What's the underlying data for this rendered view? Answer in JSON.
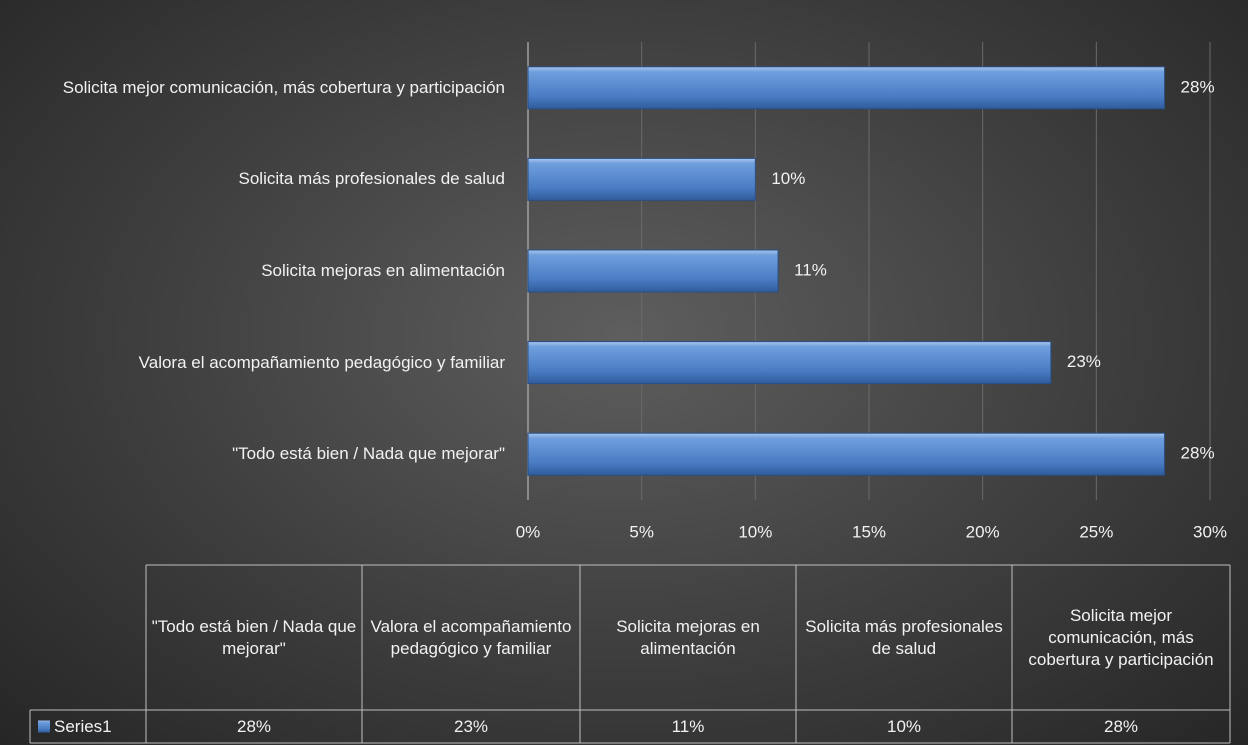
{
  "chart_data": {
    "type": "bar",
    "orientation": "horizontal",
    "categories": [
      "\"Todo está bien / Nada que mejorar\"",
      "Valora el acompañamiento pedagógico y familiar",
      "Solicita mejoras en alimentación",
      "Solicita más profesionales de salud",
      "Solicita mejor comunicación, más cobertura y participación"
    ],
    "series": [
      {
        "name": "Series1",
        "color": "#4f81bd",
        "values": [
          28,
          23,
          11,
          10,
          28
        ],
        "value_labels": [
          "28%",
          "23%",
          "11%",
          "10%",
          "28%"
        ]
      }
    ],
    "xlim": [
      0,
      30
    ],
    "xticks": [
      {
        "value": 0,
        "label": "0%"
      },
      {
        "value": 5,
        "label": "5%"
      },
      {
        "value": 10,
        "label": "10%"
      },
      {
        "value": 15,
        "label": "15%"
      },
      {
        "value": 20,
        "label": "20%"
      },
      {
        "value": 25,
        "label": "25%"
      },
      {
        "value": 30,
        "label": "30%"
      }
    ],
    "grid": true,
    "data_table": true
  }
}
